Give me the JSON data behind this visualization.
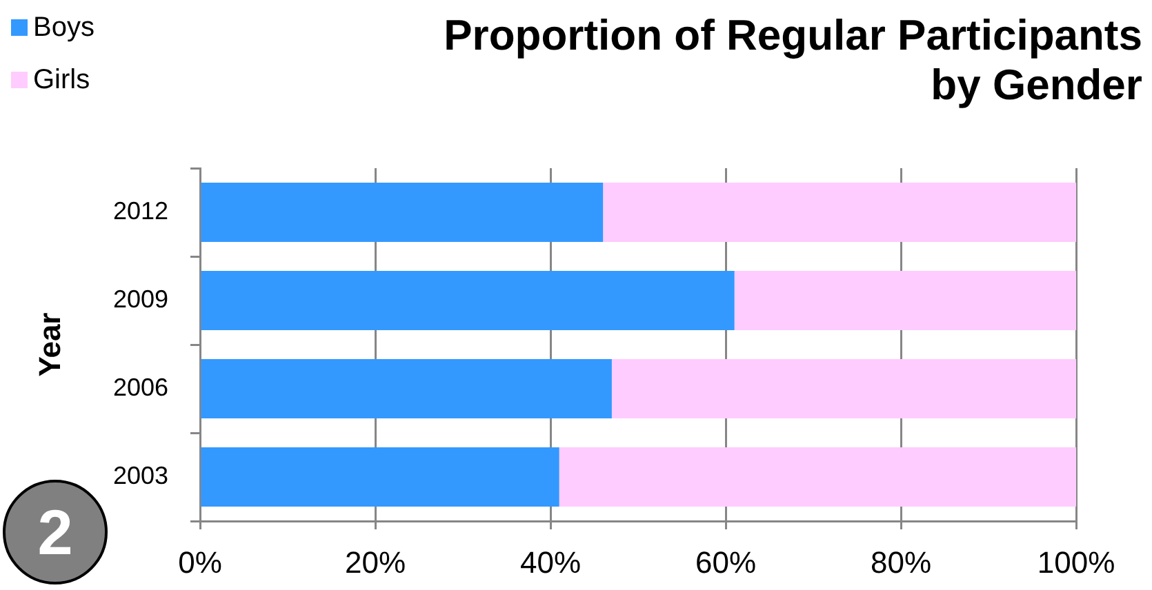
{
  "chart_data": {
    "type": "bar",
    "orientation": "horizontal",
    "stacked": true,
    "title": "Proportion of Regular Participants by Gender",
    "ylabel": "Year",
    "categories": [
      "2012",
      "2009",
      "2006",
      "2003"
    ],
    "series": [
      {
        "name": "Boys",
        "color": "#3399ff",
        "values": [
          46,
          61,
          47,
          41
        ]
      },
      {
        "name": "Girls",
        "color": "#ffccff",
        "values": [
          54,
          39,
          53,
          59
        ]
      }
    ],
    "xlim": [
      0,
      100
    ],
    "xticks": [
      {
        "value": 0,
        "label": "0%"
      },
      {
        "value": 20,
        "label": "20%"
      },
      {
        "value": 40,
        "label": "40%"
      },
      {
        "value": 60,
        "label": "60%"
      },
      {
        "value": 80,
        "label": "80%"
      },
      {
        "value": 100,
        "label": "100%"
      }
    ],
    "grid": "x",
    "legend": "top left",
    "annotations": [
      "2"
    ]
  }
}
